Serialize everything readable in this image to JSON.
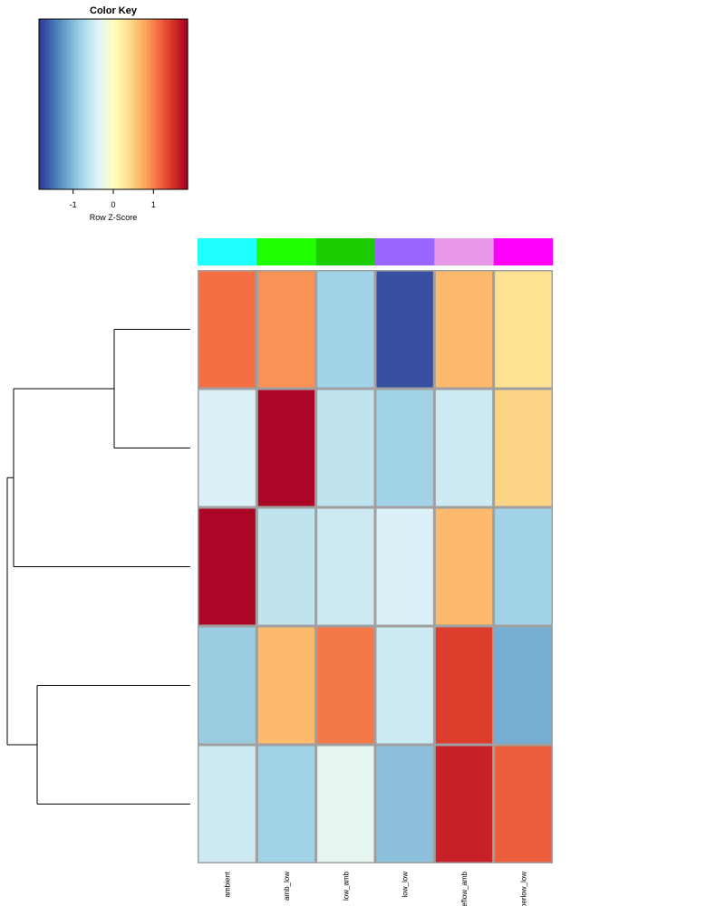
{
  "color_key": {
    "title": "Color Key",
    "xlabel": "Row Z-Score",
    "ticks": [
      {
        "value": -1,
        "label": "-1"
      },
      {
        "value": 0,
        "label": "0"
      },
      {
        "value": 1,
        "label": "1"
      }
    ],
    "range": [
      -1.85,
      1.85
    ],
    "palette": [
      "#313695",
      "#4575b4",
      "#74add1",
      "#abd9e9",
      "#e0f3f8",
      "#ffffbf",
      "#fee090",
      "#fdae61",
      "#f46d43",
      "#d73027",
      "#a50026"
    ]
  },
  "chart_data": {
    "type": "heatmap",
    "columns": [
      "ambient",
      "amb_low",
      "low_amb",
      "low_low",
      "",
      ""
    ],
    "column_labels_visible": [
      "ambient",
      "amb_low",
      "low_amb",
      "low_low",
      "eflow_amb",
      "oerlow_low"
    ],
    "column_colors": [
      "#1fffff",
      "#1eff00",
      "#1ccc00",
      "#9966ff",
      "#e89ae8",
      "#ff00ff"
    ],
    "rows": 5,
    "values": [
      [
        1.1,
        0.9,
        -0.8,
        -1.7,
        0.65,
        0.35
      ],
      [
        -0.4,
        1.8,
        -0.6,
        -0.8,
        -0.5,
        0.45
      ],
      [
        1.8,
        -0.6,
        -0.5,
        -0.4,
        0.65,
        -0.8
      ],
      [
        -0.85,
        0.65,
        1.05,
        -0.5,
        1.4,
        -1.1
      ],
      [
        -0.5,
        -0.8,
        -0.3,
        -0.95,
        1.6,
        1.2
      ]
    ],
    "row_dendrogram": {
      "merges": [
        [
          0,
          1
        ],
        [
          3,
          4
        ],
        [
          "a",
          2
        ],
        [
          "b",
          "c"
        ]
      ]
    },
    "color_scale": "RdYlBu reversed",
    "xlabel": "",
    "ylabel": ""
  }
}
